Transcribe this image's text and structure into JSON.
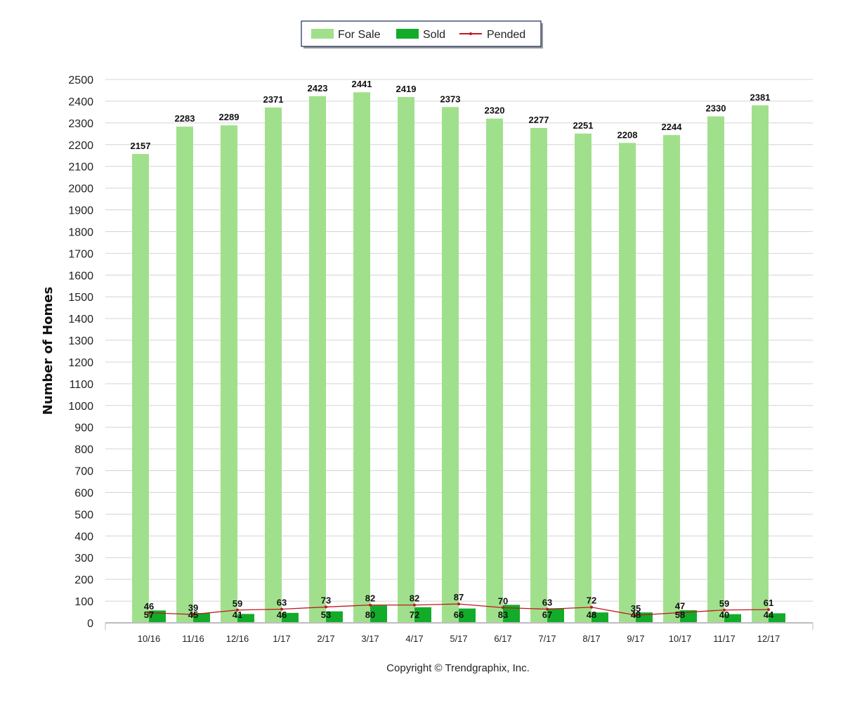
{
  "copyright": "Copyright © Trendgraphix, Inc.",
  "chart_data": {
    "type": "bar",
    "categories": [
      "10/16",
      "11/16",
      "12/16",
      "1/17",
      "2/17",
      "3/17",
      "4/17",
      "5/17",
      "6/17",
      "7/17",
      "8/17",
      "9/17",
      "10/17",
      "11/17",
      "12/17"
    ],
    "series": [
      {
        "name": "For Sale",
        "type": "bar",
        "color": "#a0e08c",
        "values": [
          2157,
          2283,
          2289,
          2371,
          2423,
          2441,
          2419,
          2373,
          2320,
          2277,
          2251,
          2208,
          2244,
          2330,
          2381
        ]
      },
      {
        "name": "Sold",
        "type": "bar",
        "color": "#13ac2a",
        "values": [
          57,
          45,
          41,
          46,
          53,
          80,
          72,
          66,
          83,
          67,
          48,
          48,
          58,
          40,
          44
        ]
      },
      {
        "name": "Pended",
        "type": "line",
        "color": "#c0181f",
        "values": [
          46,
          39,
          59,
          63,
          73,
          82,
          82,
          87,
          70,
          63,
          72,
          35,
          47,
          59,
          61
        ]
      }
    ],
    "ylabel": "Number of Homes",
    "xlabel": "",
    "ylim": [
      0,
      2500
    ],
    "ytick_step": 100,
    "grid": true,
    "legend_position": "top-center"
  }
}
